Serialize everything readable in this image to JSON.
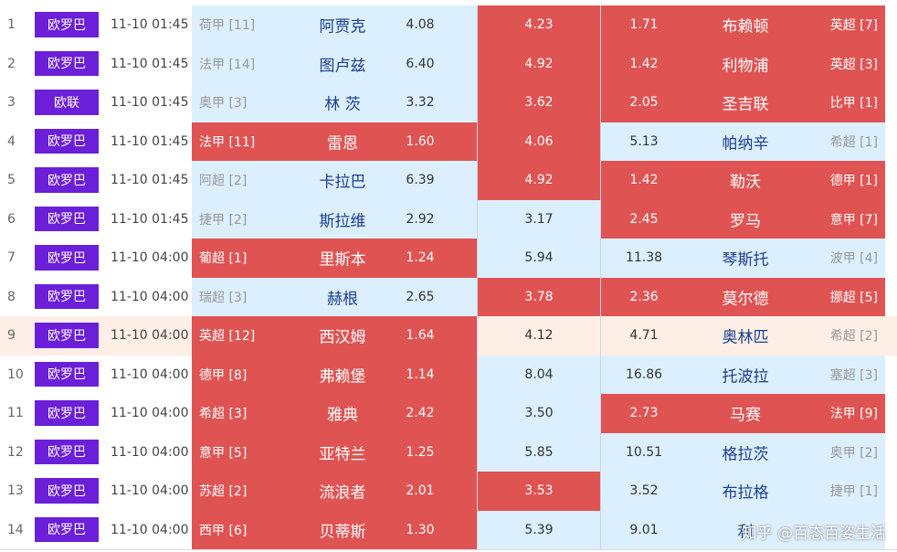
{
  "table": {
    "rows": [
      [
        1,
        "欧罗巴",
        "11-10 01:45",
        "荷甲 [11]",
        "阿贾克",
        "4.08",
        "4.23",
        "1.71",
        "布赖顿",
        "英超 [7]"
      ],
      [
        2,
        "欧罗巴",
        "11-10 01:45",
        "法甲 [14]",
        "图卢兹",
        "6.40",
        "4.92",
        "1.42",
        "利物浦",
        "英超 [3]"
      ],
      [
        3,
        "欧联",
        "11-10 01:45",
        "奥甲 [3]",
        "林 茨",
        "3.32",
        "3.62",
        "2.05",
        "圣吉联",
        "比甲 [1]"
      ],
      [
        4,
        "欧罗巴",
        "11-10 01:45",
        "法甲 [11]",
        "雷恩",
        "1.60",
        "4.06",
        "5.13",
        "帕纳辛",
        "希超 [1]"
      ],
      [
        5,
        "欧罗巴",
        "11-10 01:45",
        "阿超 [2]",
        "卡拉巴",
        "6.39",
        "4.92",
        "1.42",
        "勒沃",
        "德甲 [1]"
      ],
      [
        6,
        "欧罗巴",
        "11-10 01:45",
        "捷甲 [2]",
        "斯拉维",
        "2.92",
        "3.17",
        "2.45",
        "罗马",
        "意甲 [7]"
      ],
      [
        7,
        "欧罗巴",
        "11-10 04:00",
        "葡超 [1]",
        "里斯本",
        "1.24",
        "5.94",
        "11.38",
        "琴斯托",
        "波甲 [4]"
      ],
      [
        8,
        "欧罗巴",
        "11-10 04:00",
        "瑞超 [3]",
        "赫根",
        "2.65",
        "3.78",
        "2.36",
        "莫尔德",
        "挪超 [5]"
      ],
      [
        9,
        "欧罗巴",
        "11-10 04:00",
        "英超 [12]",
        "西汉姆",
        "1.64",
        "4.12",
        "4.71",
        "奥林匹",
        "希超 [2]"
      ],
      [
        10,
        "欧罗巴",
        "11-10 04:00",
        "德甲 [8]",
        "弗赖堡",
        "1.14",
        "8.04",
        "16.86",
        "托波拉",
        "塞超 [3]"
      ],
      [
        11,
        "欧罗巴",
        "11-10 04:00",
        "希超 [3]",
        "雅典",
        "2.42",
        "3.50",
        "2.73",
        "马赛",
        "法甲 [9]"
      ],
      [
        12,
        "欧罗巴",
        "11-10 04:00",
        "意甲 [5]",
        "亚特兰",
        "1.25",
        "5.85",
        "10.51",
        "格拉茨",
        "奥甲 [2]"
      ],
      [
        13,
        "欧罗巴",
        "11-10 04:00",
        "苏超 [2]",
        "流浪者",
        "2.01",
        "3.53",
        "3.52",
        "布拉格",
        "捷甲 [1]"
      ],
      [
        14,
        "欧罗巴",
        "11-10 04:00",
        "西甲 [6]",
        "贝蒂斯",
        "1.30",
        "5.39",
        "9.01",
        "利",
        null
      ]
    ],
    "watermark": "知乎 @百态百姿生活"
  }
}
